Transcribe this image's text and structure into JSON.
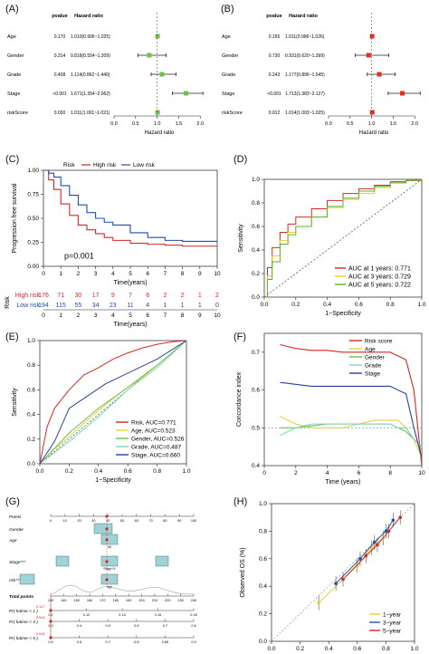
{
  "panels": {
    "A": {
      "letter": "(A)"
    },
    "B": {
      "letter": "(B)"
    },
    "C": {
      "letter": "(C)"
    },
    "D": {
      "letter": "(D)"
    },
    "E": {
      "letter": "(E)"
    },
    "F": {
      "letter": "(F)"
    },
    "G": {
      "letter": "(G)"
    },
    "H": {
      "letter": "(H)"
    }
  },
  "colors": {
    "high_risk": "#d62728",
    "low_risk": "#1f4fa8",
    "green": "#6cc24a",
    "red": "#e03020",
    "year1": "#d62728",
    "year3": "#e8d02a",
    "year5": "#5fb030",
    "age": "#e8d040",
    "gender": "#6cc24a",
    "grade": "#7fd6c8",
    "stage": "#2a3f9c"
  },
  "chart_data": [
    {
      "id": "A",
      "type": "forest",
      "col_headers": [
        "pvalue",
        "Hazard ratio"
      ],
      "rows": [
        {
          "label": "Age",
          "pvalue": "0.170",
          "hr_text": "1.010(0.996~1.025)",
          "hr": 1.01,
          "lo": 0.996,
          "hi": 1.025
        },
        {
          "label": "Gender",
          "pvalue": "0.314",
          "hr_text": "0.818(0.554~1.209)",
          "hr": 0.818,
          "lo": 0.554,
          "hi": 1.209
        },
        {
          "label": "Grade",
          "pvalue": "0.408",
          "hr_text": "1.114(0.862~1.440)",
          "hr": 1.114,
          "lo": 0.862,
          "hi": 1.44
        },
        {
          "label": "Stage",
          "pvalue": "<0.001",
          "hr_text": "1.671(1.354~2.062)",
          "hr": 1.671,
          "lo": 1.354,
          "hi": 2.062
        },
        {
          "label": "riskScore",
          "pvalue": "0.030",
          "hr_text": "1.011(1.001~1.021)",
          "hr": 1.011,
          "lo": 1.001,
          "hi": 1.021
        }
      ],
      "xticks": [
        "0.0",
        "0.5",
        "1.0",
        "1.5",
        "2.0"
      ],
      "xlim": [
        0,
        2.1
      ],
      "xlabel": "Hazard ratio"
    },
    {
      "id": "B",
      "type": "forest",
      "col_headers": [
        "pvalue",
        "Hazard ratio"
      ],
      "rows": [
        {
          "label": "Age",
          "pvalue": "0.155",
          "hr_text": "1.011(0.996~1.026)",
          "hr": 1.011,
          "lo": 0.996,
          "hi": 1.026
        },
        {
          "label": "Gender",
          "pvalue": "0.730",
          "hr_text": "0.931(0.620~1.399)",
          "hr": 0.931,
          "lo": 0.62,
          "hi": 1.399
        },
        {
          "label": "Grade",
          "pvalue": "0.243",
          "hr_text": "1.177(0.896~1.545)",
          "hr": 1.177,
          "lo": 0.896,
          "hi": 1.545
        },
        {
          "label": "Stage",
          "pvalue": "<0.001",
          "hr_text": "1.713(1.383~2.127)",
          "hr": 1.713,
          "lo": 1.383,
          "hi": 2.127
        },
        {
          "label": "riskScore",
          "pvalue": "0.012",
          "hr_text": "1.014(1.003~1.025)",
          "hr": 1.014,
          "lo": 1.003,
          "hi": 1.025
        }
      ],
      "xticks": [
        "0.0",
        "0.5",
        "1.0",
        "1.5",
        "2.0"
      ],
      "xlim": [
        0,
        2.1
      ],
      "xlabel": "Hazard ratio"
    },
    {
      "id": "C",
      "type": "line",
      "legend_title": "Risk",
      "series": [
        {
          "name": "High risk",
          "x": [
            0,
            0.3,
            0.6,
            1,
            1.5,
            2,
            2.5,
            3,
            3.5,
            4,
            5,
            6,
            7,
            8,
            9,
            10
          ],
          "y": [
            1.0,
            0.9,
            0.8,
            0.65,
            0.53,
            0.43,
            0.38,
            0.34,
            0.3,
            0.27,
            0.24,
            0.23,
            0.22,
            0.21,
            0.21,
            0.21
          ]
        },
        {
          "name": "Low risk",
          "x": [
            0,
            0.3,
            0.6,
            1,
            1.5,
            2,
            2.5,
            3,
            3.5,
            4,
            5,
            6,
            7,
            8,
            9,
            10
          ],
          "y": [
            1.0,
            0.97,
            0.93,
            0.84,
            0.74,
            0.64,
            0.56,
            0.5,
            0.46,
            0.43,
            0.35,
            0.3,
            0.27,
            0.26,
            0.26,
            0.26
          ]
        }
      ],
      "annotation": "p=0.001",
      "xlabel": "Time(years)",
      "ylabel": "Progression free survival",
      "xlim": [
        0,
        10
      ],
      "ylim": [
        0,
        1
      ],
      "xticks": [
        "0",
        "1",
        "2",
        "3",
        "4",
        "5",
        "6",
        "7",
        "8",
        "9",
        "10"
      ],
      "yticks": [
        "0.00",
        "0.25",
        "0.50",
        "0.75",
        "1.00"
      ],
      "risk_table": {
        "title": "Risk",
        "rows": [
          {
            "label": "High risk",
            "values": [
              "176",
              "71",
              "30",
              "17",
              "9",
              "7",
              "6",
              "2",
              "2",
              "1",
              "2"
            ]
          },
          {
            "label": "Low risk",
            "values": [
              "194",
              "115",
              "55",
              "34",
              "23",
              "11",
              "4",
              "1",
              "1",
              "1",
              "0"
            ]
          }
        ],
        "xlabel": "Time(years)"
      }
    },
    {
      "id": "D",
      "type": "line",
      "series": [
        {
          "name": "AUC at 1 years: 0.771",
          "x": [
            0,
            0.02,
            0.05,
            0.1,
            0.15,
            0.2,
            0.3,
            0.4,
            0.5,
            0.6,
            0.7,
            0.8,
            0.9,
            1
          ],
          "y": [
            0,
            0.25,
            0.42,
            0.55,
            0.62,
            0.68,
            0.75,
            0.82,
            0.88,
            0.92,
            0.95,
            0.98,
            0.99,
            1
          ]
        },
        {
          "name": "AUC at 3 years: 0.729",
          "x": [
            0,
            0.02,
            0.05,
            0.1,
            0.15,
            0.2,
            0.3,
            0.4,
            0.5,
            0.6,
            0.7,
            0.8,
            0.9,
            1
          ],
          "y": [
            0,
            0.18,
            0.35,
            0.48,
            0.55,
            0.6,
            0.68,
            0.76,
            0.83,
            0.88,
            0.93,
            0.97,
            0.99,
            1
          ]
        },
        {
          "name": "AUC at 5 years: 0.722",
          "x": [
            0,
            0.02,
            0.05,
            0.1,
            0.15,
            0.2,
            0.3,
            0.4,
            0.5,
            0.6,
            0.7,
            0.8,
            0.9,
            1
          ],
          "y": [
            0,
            0.15,
            0.3,
            0.45,
            0.53,
            0.6,
            0.68,
            0.77,
            0.84,
            0.9,
            0.94,
            0.97,
            0.99,
            1
          ]
        }
      ],
      "xlabel": "1−Specificity",
      "ylabel": "Sensitivity",
      "xlim": [
        0,
        1
      ],
      "ylim": [
        0,
        1
      ],
      "xticks": [
        "0.0",
        "0.2",
        "0.4",
        "0.6",
        "0.8",
        "1.0"
      ],
      "yticks": [
        "0.0",
        "0.2",
        "0.4",
        "0.6",
        "0.8",
        "1.0"
      ]
    },
    {
      "id": "E",
      "type": "line",
      "series": [
        {
          "name": "Risk, AUC=0.771",
          "x": [
            0,
            0.05,
            0.1,
            0.2,
            0.3,
            0.4,
            0.5,
            0.6,
            0.7,
            0.8,
            0.9,
            1
          ],
          "y": [
            0,
            0.3,
            0.45,
            0.6,
            0.72,
            0.78,
            0.85,
            0.9,
            0.94,
            0.97,
            0.99,
            1
          ]
        },
        {
          "name": "Age, AUC=0.523",
          "x": [
            0,
            0.1,
            0.2,
            0.3,
            0.4,
            0.5,
            0.6,
            0.7,
            0.8,
            0.9,
            1
          ],
          "y": [
            0,
            0.12,
            0.22,
            0.33,
            0.43,
            0.53,
            0.62,
            0.7,
            0.8,
            0.9,
            1
          ]
        },
        {
          "name": "Gender, AUC=0.526",
          "x": [
            0,
            0.2,
            0.4,
            0.6,
            0.8,
            1
          ],
          "y": [
            0,
            0.25,
            0.45,
            0.62,
            0.8,
            1
          ]
        },
        {
          "name": "Grade, AUC=0.487",
          "x": [
            0,
            0.2,
            0.4,
            0.6,
            0.8,
            1
          ],
          "y": [
            0,
            0.18,
            0.38,
            0.6,
            0.78,
            1
          ]
        },
        {
          "name": "Stage, AUC=0.660",
          "x": [
            0,
            0.1,
            0.2,
            0.45,
            0.8,
            1
          ],
          "y": [
            0,
            0.18,
            0.45,
            0.65,
            0.85,
            1
          ]
        }
      ],
      "xlabel": "1−Specificity",
      "ylabel": "Sensitivity",
      "xlim": [
        0,
        1
      ],
      "ylim": [
        0,
        1
      ],
      "xticks": [
        "0.0",
        "0.2",
        "0.4",
        "0.6",
        "0.8",
        "1.0"
      ],
      "yticks": [
        "0.0",
        "0.2",
        "0.4",
        "0.6",
        "0.8",
        "1.0"
      ]
    },
    {
      "id": "F",
      "type": "line",
      "series": [
        {
          "name": "Risk score",
          "x": [
            1,
            2,
            3,
            4,
            5,
            6,
            7,
            8,
            8.5,
            9,
            9.5,
            10
          ],
          "y": [
            0.72,
            0.71,
            0.705,
            0.705,
            0.7,
            0.7,
            0.7,
            0.7,
            0.69,
            0.68,
            0.6,
            0.4
          ]
        },
        {
          "name": "Age",
          "x": [
            1,
            2,
            3,
            4,
            5,
            6,
            7,
            8,
            8.5,
            9,
            9.5,
            10
          ],
          "y": [
            0.53,
            0.51,
            0.5,
            0.5,
            0.5,
            0.51,
            0.52,
            0.52,
            0.52,
            0.5,
            0.47,
            0.42
          ]
        },
        {
          "name": "Gender",
          "x": [
            1,
            2,
            3,
            4,
            5,
            6,
            7,
            8,
            8.5,
            9,
            9.5,
            10
          ],
          "y": [
            0.5,
            0.5,
            0.505,
            0.51,
            0.51,
            0.51,
            0.51,
            0.51,
            0.5,
            0.49,
            0.47,
            0.45
          ]
        },
        {
          "name": "Grade",
          "x": [
            1,
            2,
            3,
            4,
            5,
            6,
            7,
            8,
            8.5,
            9,
            9.5,
            10
          ],
          "y": [
            0.48,
            0.5,
            0.51,
            0.51,
            0.51,
            0.51,
            0.51,
            0.51,
            0.5,
            0.5,
            0.47,
            0.45
          ]
        },
        {
          "name": "Stage",
          "x": [
            1,
            2,
            3,
            4,
            5,
            6,
            7,
            8,
            8.5,
            9,
            9.5,
            10
          ],
          "y": [
            0.62,
            0.615,
            0.61,
            0.61,
            0.61,
            0.61,
            0.61,
            0.61,
            0.6,
            0.59,
            0.5,
            0.42
          ]
        }
      ],
      "xlabel": "Time (years)",
      "ylabel": "Concordance index",
      "xlim": [
        0,
        10
      ],
      "ylim": [
        0.4,
        0.75
      ],
      "xticks": [
        "0",
        "2",
        "4",
        "6",
        "8",
        "10"
      ],
      "yticks": [
        "0.4",
        "0.5",
        "0.6",
        "0.7"
      ]
    },
    {
      "id": "G",
      "type": "table",
      "rows": [
        {
          "label": "Points",
          "ticks": [
            "0",
            "10",
            "20",
            "30",
            "40",
            "50",
            "60",
            "70",
            "80",
            "90",
            "100"
          ]
        },
        {
          "label": "Gender"
        },
        {
          "label": "Age",
          "box_text": "65"
        },
        {
          "label": "Stage***",
          "box_text": "Stage IV"
        },
        {
          "label": "risk***",
          "box_text": "high"
        },
        {
          "label": "Total points",
          "ticks": [
            "130",
            "140",
            "150",
            "160",
            "170",
            "180",
            "190",
            "200",
            "210",
            "220",
            "230",
            "240"
          ]
        },
        {
          "label": "Pr( futime < 1 )",
          "ticks": [
            "0.1",
            "0.12",
            "0.14",
            "0.16",
            "0.18"
          ]
        },
        {
          "label": "Pr( futime < 3 )",
          "ticks": [
            "0.3",
            "0.4",
            "0.5",
            "0.6",
            "0.7",
            "0.8"
          ]
        },
        {
          "label": "Pr( futime < 5 )",
          "ticks": [
            "0.5",
            "0.6",
            "0.7",
            "0.8",
            "0.85",
            "0.9"
          ]
        }
      ],
      "markers": [
        "0.117",
        "0.516",
        "0.616"
      ]
    },
    {
      "id": "H",
      "type": "scatter",
      "series": [
        {
          "name": "1−year",
          "x": [
            0.33,
            0.6,
            0.7,
            0.78
          ],
          "y": [
            0.28,
            0.55,
            0.68,
            0.75
          ]
        },
        {
          "name": "3−year",
          "x": [
            0.45,
            0.62,
            0.72,
            0.8,
            0.85
          ],
          "y": [
            0.42,
            0.6,
            0.72,
            0.8,
            0.88
          ]
        },
        {
          "name": "5−year",
          "x": [
            0.5,
            0.66,
            0.74,
            0.82,
            0.9
          ],
          "y": [
            0.45,
            0.62,
            0.7,
            0.8,
            0.9
          ]
        }
      ],
      "xlabel": "Nomogram−predicted OS (%)",
      "ylabel": "Observed OS (%)",
      "xlim": [
        0,
        1
      ],
      "ylim": [
        0,
        1
      ],
      "xticks": [
        "0.0",
        "0.2",
        "0.4",
        "0.6",
        "0.8",
        "1.0"
      ],
      "yticks": [
        "0.0",
        "0.2",
        "0.4",
        "0.6",
        "0.8",
        "1.0"
      ]
    }
  ]
}
